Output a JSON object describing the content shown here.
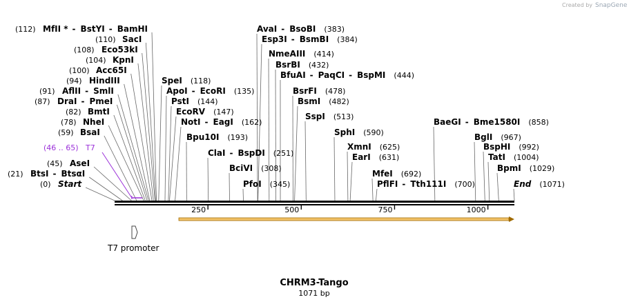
{
  "credit": {
    "created_by": "Created by",
    "brand": "SnapGene"
  },
  "construct": {
    "name": "CHRM3-Tango",
    "length_label": "1071 bp",
    "length": 1071
  },
  "ruler": {
    "ticks": [
      {
        "label": "250",
        "value": 250
      },
      {
        "label": "500",
        "value": 500
      },
      {
        "label": "750",
        "value": 750
      },
      {
        "label": "1000",
        "value": 1000
      }
    ]
  },
  "sites": [
    {
      "name": "MfII *",
      "pos": 112,
      "pos_label": "(112)",
      "partner": "BstYI",
      "partner2": "BamHI"
    },
    {
      "name": "SacI",
      "pos": 110,
      "pos_label": "(110)"
    },
    {
      "name": "Eco53kI",
      "pos": 108,
      "pos_label": "(108)"
    },
    {
      "name": "KpnI",
      "pos": 104,
      "pos_label": "(104)"
    },
    {
      "name": "Acc65I",
      "pos": 100,
      "pos_label": "(100)"
    },
    {
      "name": "HindIII",
      "pos": 94,
      "pos_label": "(94)"
    },
    {
      "name": "AflII",
      "pos": 91,
      "pos_label": "(91)",
      "partner": "SmlI"
    },
    {
      "name": "DraI",
      "pos": 87,
      "pos_label": "(87)",
      "partner": "PmeI"
    },
    {
      "name": "BmtI",
      "pos": 82,
      "pos_label": "(82)"
    },
    {
      "name": "NheI",
      "pos": 78,
      "pos_label": "(78)"
    },
    {
      "name": "BsaI",
      "pos": 59,
      "pos_label": "(59)"
    },
    {
      "name": "AseI",
      "pos": 45,
      "pos_label": "(45)"
    },
    {
      "name": "BtsI",
      "pos": 21,
      "pos_label": "(21)",
      "partner": "BtsαI"
    },
    {
      "name": "Start",
      "pos": 0,
      "pos_label": "(0)",
      "italic": true
    },
    {
      "name": "SpeI",
      "pos": 118,
      "pos_label": "(118)"
    },
    {
      "name": "ApoI",
      "pos": 135,
      "pos_label": "(135)",
      "partner": "EcoRI"
    },
    {
      "name": "PstI",
      "pos": 144,
      "pos_label": "(144)"
    },
    {
      "name": "EcoRV",
      "pos": 147,
      "pos_label": "(147)"
    },
    {
      "name": "NotI",
      "pos": 162,
      "pos_label": "(162)",
      "partner": "EagI"
    },
    {
      "name": "Bpu10I",
      "pos": 193,
      "pos_label": "(193)"
    },
    {
      "name": "ClaI",
      "pos": 251,
      "pos_label": "(251)",
      "partner": "BspDI"
    },
    {
      "name": "BciVI",
      "pos": 308,
      "pos_label": "(308)"
    },
    {
      "name": "PfoI",
      "pos": 345,
      "pos_label": "(345)"
    },
    {
      "name": "AvaI",
      "pos": 383,
      "pos_label": "(383)",
      "partner": "BsoBI"
    },
    {
      "name": "Esp3I",
      "pos": 384,
      "pos_label": "(384)",
      "partner": "BsmBI"
    },
    {
      "name": "NmeAIII",
      "pos": 414,
      "pos_label": "(414)"
    },
    {
      "name": "BsrBI",
      "pos": 432,
      "pos_label": "(432)"
    },
    {
      "name": "BfuAI",
      "pos": 444,
      "pos_label": "(444)",
      "partner": "PaqCI",
      "partner2": "BspMI"
    },
    {
      "name": "BsrFI",
      "pos": 478,
      "pos_label": "(478)"
    },
    {
      "name": "BsmI",
      "pos": 482,
      "pos_label": "(482)"
    },
    {
      "name": "SspI",
      "pos": 513,
      "pos_label": "(513)"
    },
    {
      "name": "SphI",
      "pos": 590,
      "pos_label": "(590)"
    },
    {
      "name": "XmnI",
      "pos": 625,
      "pos_label": "(625)"
    },
    {
      "name": "EarI",
      "pos": 631,
      "pos_label": "(631)"
    },
    {
      "name": "MfeI",
      "pos": 692,
      "pos_label": "(692)"
    },
    {
      "name": "PflFI",
      "pos": 700,
      "pos_label": "(700)",
      "partner": "Tth111I"
    },
    {
      "name": "BaeGI",
      "pos": 858,
      "pos_label": "(858)",
      "partner": "Bme1580I"
    },
    {
      "name": "BglI",
      "pos": 967,
      "pos_label": "(967)"
    },
    {
      "name": "BspHI",
      "pos": 992,
      "pos_label": "(992)"
    },
    {
      "name": "TatI",
      "pos": 1004,
      "pos_label": "(1004)"
    },
    {
      "name": "BpmI",
      "pos": 1029,
      "pos_label": "(1029)"
    },
    {
      "name": "End",
      "pos": 1071,
      "pos_label": "(1071)",
      "italic": true
    }
  ],
  "features": [
    {
      "name": "T7",
      "range_label": "(46 .. 65)",
      "start": 46,
      "end": 65,
      "color": "#9b30d9"
    }
  ],
  "promoter": {
    "label": "T7 promoter"
  },
  "orf": {
    "color_fill": "#f2c36a",
    "color_stroke": "#a06a00",
    "start": 50,
    "end": 1071
  }
}
